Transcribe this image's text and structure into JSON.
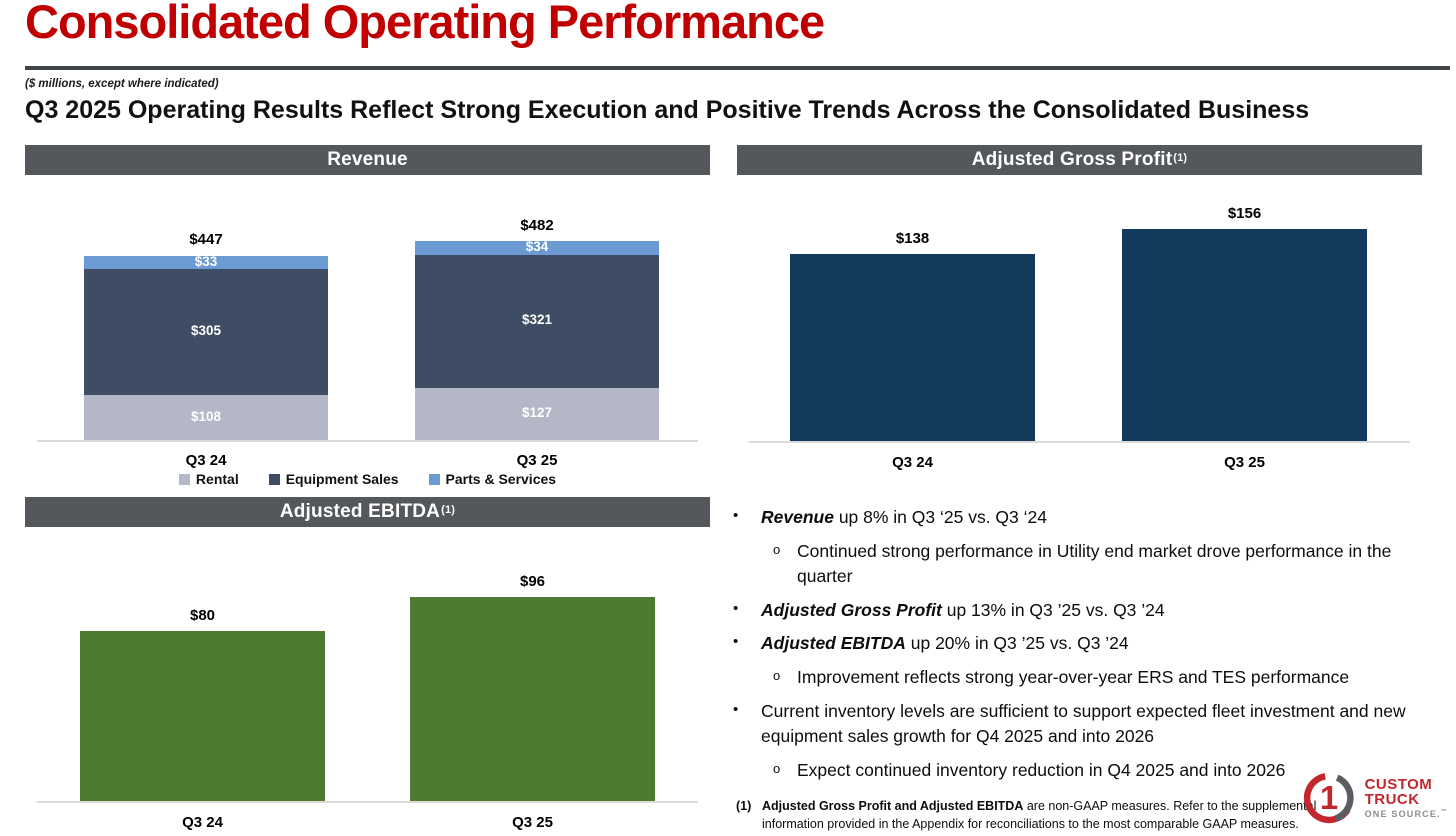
{
  "slide": {
    "title": "Consolidated Operating Performance",
    "units_note": "($ millions, except where indicated)",
    "headline": "Q3 2025 Operating Results Reflect Strong Execution and Positive Trends Across the Consolidated Business"
  },
  "colors": {
    "title_red": "#c00000",
    "header_bar_gray": "#54575b",
    "rental": "#b4b8c6",
    "equipment_sales": "#3e4d63",
    "parts_services": "#6c9bd3",
    "gross_profit_navy": "#113a5c",
    "ebitda_green": "#4e7b31",
    "axis_gray": "#dbdbdb",
    "logo_red": "#c3272e",
    "logo_gray": "#595d61"
  },
  "chart_data": [
    {
      "type": "bar",
      "stacked": true,
      "title": "Revenue",
      "title_sup": "",
      "categories": [
        "Q3 24",
        "Q3 25"
      ],
      "series": [
        {
          "name": "Rental",
          "color": "#b4b8c6",
          "values": [
            108,
            127
          ],
          "labels": [
            "$108",
            "$127"
          ]
        },
        {
          "name": "Equipment Sales",
          "color": "#3e4d63",
          "values": [
            305,
            321
          ],
          "labels": [
            "$305",
            "$321"
          ]
        },
        {
          "name": "Parts & Services",
          "color": "#6c9bd3",
          "values": [
            33,
            34
          ],
          "labels": [
            "$33",
            "$34"
          ]
        }
      ],
      "totals": [
        447,
        482
      ],
      "total_labels": [
        "$447",
        "$482"
      ],
      "xlabel": "",
      "ylabel": "",
      "ylim": [
        0,
        630
      ],
      "grid": false,
      "legend_position": "bottom"
    },
    {
      "type": "bar",
      "stacked": false,
      "title": "Adjusted Gross Profit",
      "title_sup": "(1)",
      "categories": [
        "Q3 24",
        "Q3 25"
      ],
      "values": [
        138,
        156
      ],
      "labels": [
        "$138",
        "$156"
      ],
      "color": "#113a5c",
      "xlabel": "",
      "ylabel": "",
      "ylim": [
        0,
        192
      ],
      "grid": false,
      "legend_position": "none"
    },
    {
      "type": "bar",
      "stacked": false,
      "title": "Adjusted EBITDA",
      "title_sup": "(1)",
      "categories": [
        "Q3 24",
        "Q3 25"
      ],
      "values": [
        80,
        96
      ],
      "labels": [
        "$80",
        "$96"
      ],
      "color": "#4e7b31",
      "xlabel": "",
      "ylabel": "",
      "ylim": [
        0,
        123
      ],
      "grid": false,
      "legend_position": "none"
    }
  ],
  "bullets": {
    "level1_marker": "•",
    "level2_marker": "o",
    "items": [
      {
        "level": 1,
        "lead": "Revenue",
        "text": "up 8% in Q3 ‘25 vs. Q3 ‘24"
      },
      {
        "level": 2,
        "lead": "",
        "text": "Continued strong performance in Utility end market drove performance in the quarter"
      },
      {
        "level": 1,
        "lead": "Adjusted Gross Profit",
        "text": "up 13% in Q3 ’25 vs. Q3 ’24"
      },
      {
        "level": 1,
        "lead": "Adjusted EBITDA",
        "text": "up 20% in Q3 ’25 vs. Q3 ’24"
      },
      {
        "level": 2,
        "lead": "",
        "text": "Improvement reflects strong year-over-year ERS and TES performance"
      },
      {
        "level": 1,
        "lead": "",
        "text": "Current inventory levels are sufficient to support expected fleet investment and new equipment sales growth for Q4 2025 and into 2026"
      },
      {
        "level": 2,
        "lead": "",
        "text": "Expect continued inventory reduction in Q4 2025 and into 2026"
      }
    ]
  },
  "footnote": {
    "marker": "(1)",
    "bold_text": "Adjusted Gross Profit and Adjusted EBITDA",
    "text": " are non-GAAP measures. Refer to the supplemental information provided in the Appendix for reconciliations to the most comparable GAAP measures."
  },
  "logo": {
    "name": "Custom Truck One Source",
    "numeral": "1",
    "line1": "CUSTOM",
    "line2": "TRUCK",
    "line3": "ONE SOURCE.",
    "tm": "™"
  }
}
